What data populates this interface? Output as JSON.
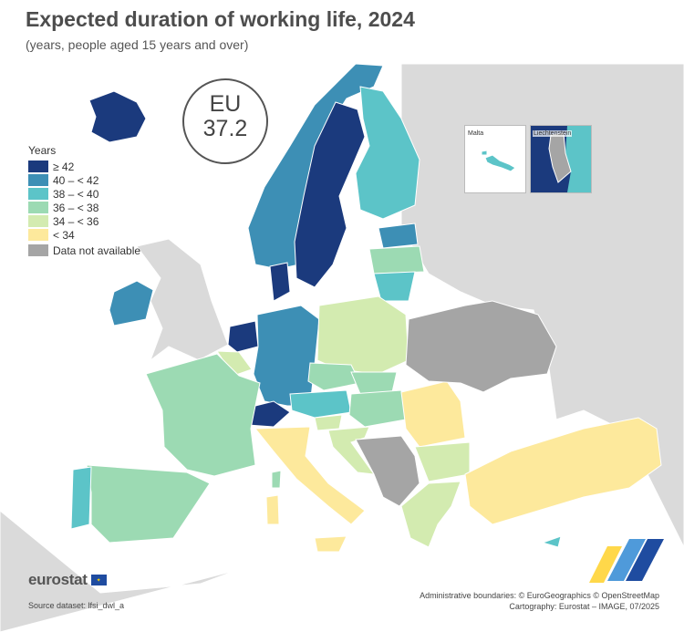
{
  "title": "Expected duration of working life, 2024",
  "subtitle": "(years, people aged 15 years and over)",
  "eu": {
    "label": "EU",
    "value": "37.2"
  },
  "legend": {
    "title": "Years",
    "classes": [
      {
        "label": "≥ 42",
        "color": "#1b3a7d"
      },
      {
        "label": "40 – < 42",
        "color": "#3d8fb5"
      },
      {
        "label": "38 – < 40",
        "color": "#5cc4c8"
      },
      {
        "label": "36 – < 38",
        "color": "#9cdab3"
      },
      {
        "label": "34 – < 36",
        "color": "#d3ebb0"
      },
      {
        "label": "< 34",
        "color": "#fde99c"
      }
    ],
    "not_available": {
      "label": "Data not available",
      "color": "#a5a5a5"
    }
  },
  "insets": {
    "malta": "Malta",
    "liechtenstein": "Liechtenstein"
  },
  "footer": {
    "logo": "eurostat",
    "source": "Source dataset: lfsi_dwl_a",
    "boundaries": "Administrative boundaries: © EuroGeographics © OpenStreetMap",
    "cartography": "Cartography: Eurostat – IMAGE, 07/2025"
  },
  "colors": {
    "non_eu_land": "#dadada",
    "sea": "#ffffff",
    "border": "#ffffff"
  }
}
